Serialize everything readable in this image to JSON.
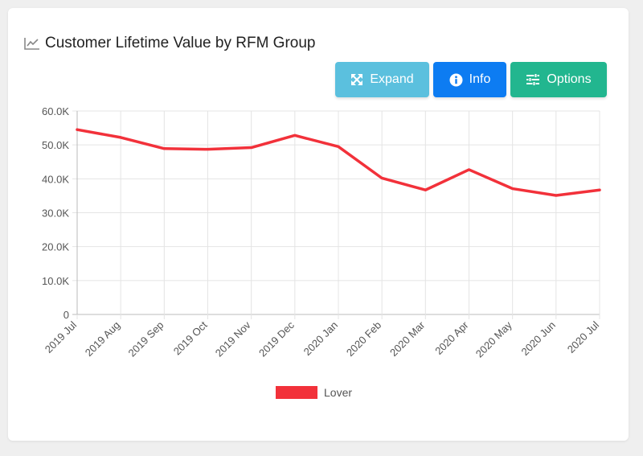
{
  "header": {
    "title": "Customer Lifetime Value by RFM Group",
    "icon": "line-chart-icon"
  },
  "toolbar": {
    "expand_label": "Expand",
    "info_label": "Info",
    "options_label": "Options"
  },
  "colors": {
    "series": "#f2313a",
    "expand": "#5bc0de",
    "info": "#0d7cf2",
    "options": "#22b68f"
  },
  "chart_data": {
    "type": "line",
    "title": "",
    "xlabel": "",
    "ylabel": "",
    "x": [
      "2019 Jul",
      "2019 Aug",
      "2019 Sep",
      "2019 Oct",
      "2019 Nov",
      "2019 Dec",
      "2020 Jan",
      "2020 Feb",
      "2020 Mar",
      "2020 Apr",
      "2020 May",
      "2020 Jun",
      "2020 Jul"
    ],
    "yticks": [
      "0",
      "10.0K",
      "20.0K",
      "30.0K",
      "40.0K",
      "50.0K",
      "60.0K"
    ],
    "ylim": [
      0,
      60000
    ],
    "grid": true,
    "legend_position": "bottom",
    "series": [
      {
        "name": "Lover",
        "values": [
          54500,
          52200,
          48900,
          48700,
          49200,
          52800,
          49500,
          40200,
          36700,
          42700,
          37100,
          35100,
          36700
        ]
      }
    ]
  }
}
